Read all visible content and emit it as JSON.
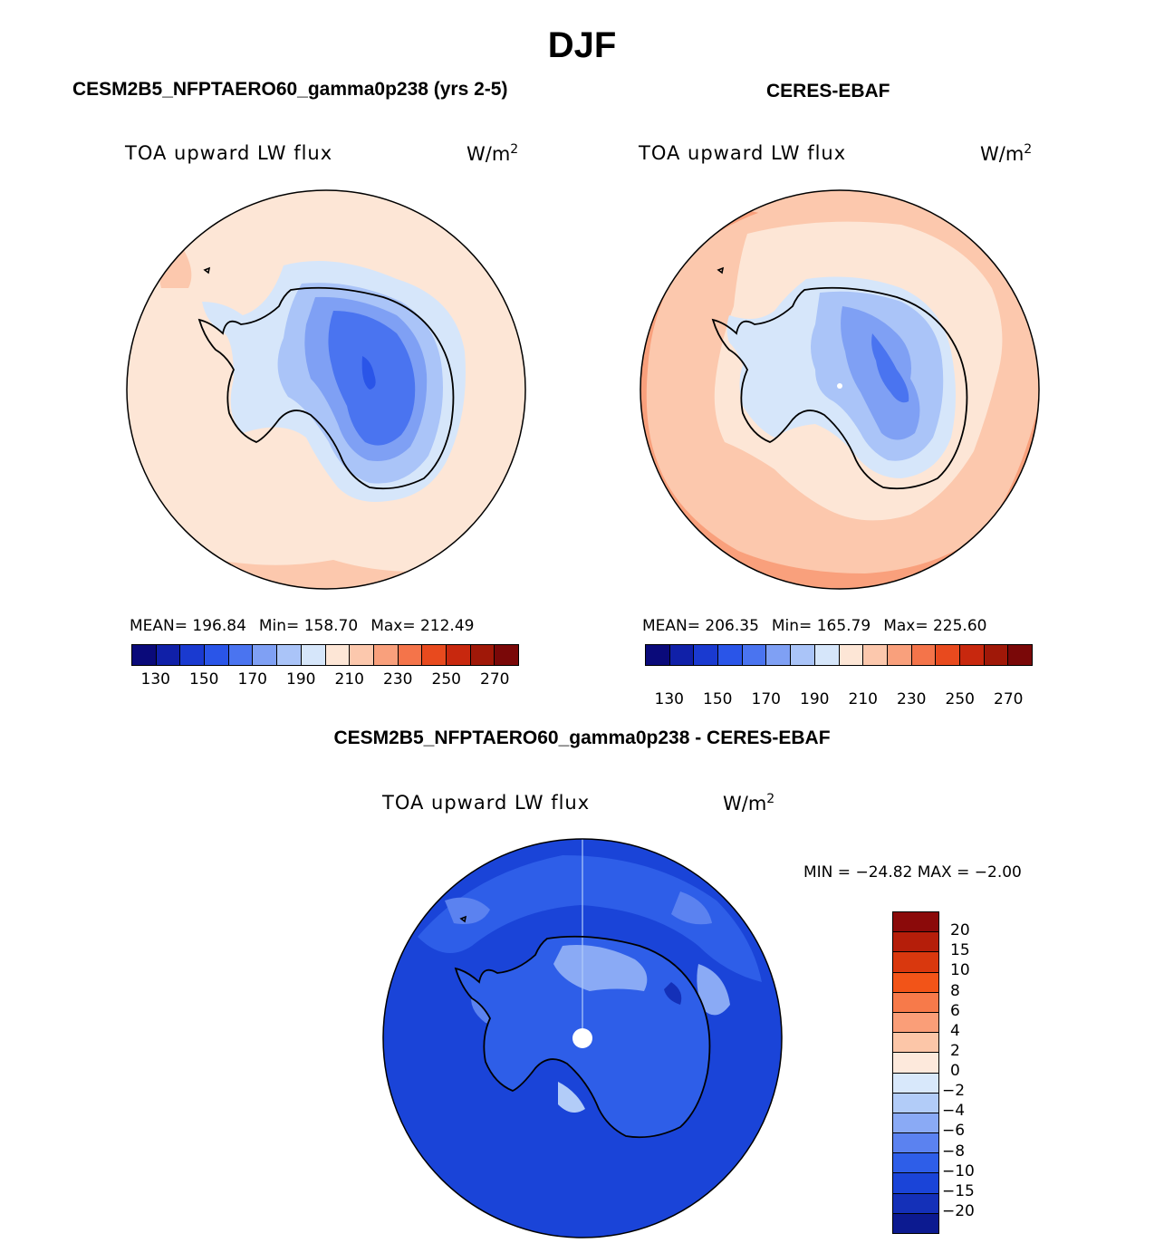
{
  "title": "DJF",
  "panel1": {
    "title": "CESM2B5_NFPTAERO60_gamma0p238 (yrs 2-5)",
    "field": "TOA upward LW flux",
    "units_base": "W/m",
    "units_sup": "2",
    "stats": {
      "mean": "MEAN= 196.84",
      "min": "Min= 158.70",
      "max": "Max= 212.49"
    }
  },
  "panel2": {
    "title": "CERES-EBAF",
    "field": "TOA upward LW flux",
    "units_base": "W/m",
    "units_sup": "2",
    "stats": {
      "mean": "MEAN= 206.35",
      "min": "Min= 165.79",
      "max": "Max= 225.60"
    }
  },
  "panel3": {
    "title": "CESM2B5_NFPTAERO60_gamma0p238 - CERES-EBAF",
    "field": "TOA upward LW flux",
    "units_base": "W/m",
    "units_sup": "2",
    "minmax": "MIN = −24.82 MAX =  −2.00"
  },
  "chart_data": [
    {
      "type": "heatmap",
      "projection": "south-polar-stereographic",
      "title": "CESM2B5_NFPTAERO60_gamma0p238 (yrs 2-5)",
      "variable": "TOA upward LW flux",
      "units": "W/m2",
      "mean": 196.84,
      "min": 158.7,
      "max": 212.49,
      "colorbar": {
        "tick_labels": [
          "130",
          "150",
          "170",
          "190",
          "210",
          "230",
          "250",
          "270"
        ],
        "colors": [
          "#0a0a7a",
          "#1020a8",
          "#1a3ad0",
          "#2a55e8",
          "#4a74f0",
          "#7fa0f4",
          "#aac4f8",
          "#d6e6fa",
          "#fde6d6",
          "#fcc8ad",
          "#f9a07c",
          "#f4744a",
          "#e84a1e",
          "#c8280e",
          "#a01808",
          "#7a0808"
        ]
      }
    },
    {
      "type": "heatmap",
      "projection": "south-polar-stereographic",
      "title": "CERES-EBAF",
      "variable": "TOA upward LW flux",
      "units": "W/m2",
      "mean": 206.35,
      "min": 165.79,
      "max": 225.6,
      "colorbar": {
        "tick_labels": [
          "130",
          "150",
          "170",
          "190",
          "210",
          "230",
          "250",
          "270"
        ],
        "colors": [
          "#0a0a7a",
          "#1020a8",
          "#1a3ad0",
          "#2a55e8",
          "#4a74f0",
          "#7fa0f4",
          "#aac4f8",
          "#d6e6fa",
          "#fde6d6",
          "#fcc8ad",
          "#f9a07c",
          "#f4744a",
          "#e84a1e",
          "#c8280e",
          "#a01808",
          "#7a0808"
        ]
      }
    },
    {
      "type": "heatmap",
      "projection": "south-polar-stereographic",
      "title": "CESM2B5_NFPTAERO60_gamma0p238 - CERES-EBAF",
      "variable": "TOA upward LW flux",
      "units": "W/m2",
      "min": -24.82,
      "max": -2.0,
      "colorbar": {
        "tick_labels": [
          "20",
          "15",
          "10",
          "8",
          "6",
          "4",
          "2",
          "0",
          "−2",
          "−4",
          "−6",
          "−8",
          "−10",
          "−15",
          "−20"
        ],
        "colors": [
          "#8b0a0a",
          "#b51e0a",
          "#d9380e",
          "#f25418",
          "#f77a4a",
          "#fa9e78",
          "#fcc6a8",
          "#fde9dc",
          "#d8e8fb",
          "#b2ccf8",
          "#8aaaf5",
          "#5b82f0",
          "#2e5ee8",
          "#1a44d8",
          "#1430b8",
          "#0c1a90"
        ]
      }
    }
  ]
}
